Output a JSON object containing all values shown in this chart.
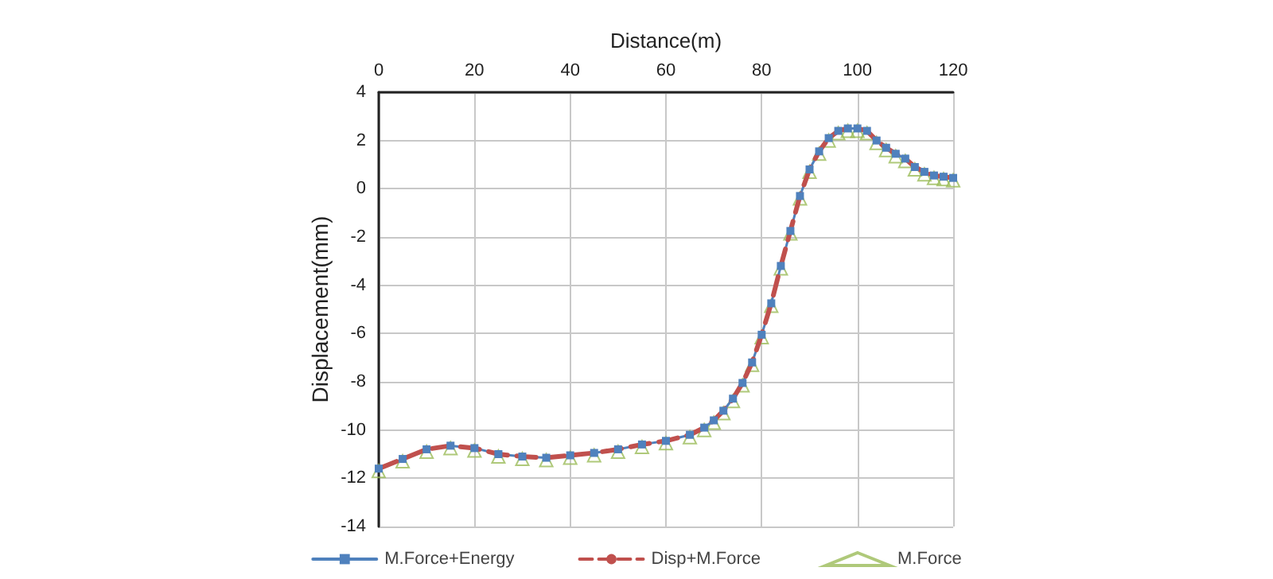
{
  "chart_data": {
    "type": "line",
    "xlabel": "Distance(m)",
    "ylabel": "Displacement(mm)",
    "x": [
      0,
      5,
      10,
      15,
      20,
      25,
      30,
      35,
      40,
      45,
      50,
      55,
      60,
      65,
      68,
      70,
      72,
      74,
      76,
      78,
      80,
      82,
      84,
      86,
      88,
      90,
      92,
      94,
      96,
      98,
      100,
      102,
      104,
      106,
      108,
      110,
      112,
      114,
      116,
      118,
      120
    ],
    "series": [
      {
        "name": "M.Force+Energy",
        "color": "#4f81bd",
        "marker": "square",
        "line_style": "solid",
        "values": [
          -11.6,
          -11.2,
          -10.8,
          -10.65,
          -10.75,
          -11.0,
          -11.1,
          -11.15,
          -11.05,
          -10.95,
          -10.8,
          -10.6,
          -10.45,
          -10.2,
          -9.9,
          -9.6,
          -9.2,
          -8.7,
          -8.05,
          -7.2,
          -6.05,
          -4.75,
          -3.2,
          -1.75,
          -0.3,
          0.8,
          1.55,
          2.1,
          2.4,
          2.5,
          2.5,
          2.4,
          2.0,
          1.7,
          1.45,
          1.25,
          0.9,
          0.7,
          0.55,
          0.5,
          0.45
        ]
      },
      {
        "name": "Disp+M.Force",
        "color": "#c0504d",
        "marker": "none",
        "line_style": "dashed",
        "values": [
          -11.6,
          -11.2,
          -10.8,
          -10.65,
          -10.75,
          -11.0,
          -11.1,
          -11.15,
          -11.05,
          -10.95,
          -10.8,
          -10.6,
          -10.45,
          -10.2,
          -9.9,
          -9.6,
          -9.2,
          -8.7,
          -8.05,
          -7.2,
          -6.05,
          -4.75,
          -3.2,
          -1.75,
          -0.3,
          0.8,
          1.55,
          2.1,
          2.4,
          2.5,
          2.5,
          2.4,
          2.0,
          1.7,
          1.45,
          1.25,
          0.9,
          0.7,
          0.55,
          0.5,
          0.45
        ]
      },
      {
        "name": "M.Force",
        "type": "scatter",
        "color": "#9bbb59",
        "marker": "triangle",
        "values": [
          -11.7,
          -11.3,
          -10.9,
          -10.75,
          -10.85,
          -11.1,
          -11.2,
          -11.25,
          -11.15,
          -11.05,
          -10.9,
          -10.7,
          -10.55,
          -10.3,
          -10.0,
          -9.7,
          -9.3,
          -8.8,
          -8.15,
          -7.3,
          -6.15,
          -4.85,
          -3.3,
          -1.85,
          -0.4,
          0.7,
          1.45,
          2.0,
          2.3,
          2.4,
          2.4,
          2.3,
          1.9,
          1.6,
          1.35,
          1.15,
          0.8,
          0.6,
          0.45,
          0.4,
          0.35
        ]
      }
    ],
    "xlim": [
      0,
      120
    ],
    "xticks": [
      0,
      20,
      40,
      60,
      80,
      100,
      120
    ],
    "ylim": [
      -14,
      4
    ],
    "yticks": [
      -14,
      -12,
      -10,
      -8,
      -6,
      -4,
      -2,
      0,
      2,
      4
    ],
    "grid": true,
    "legend": "bottom"
  }
}
